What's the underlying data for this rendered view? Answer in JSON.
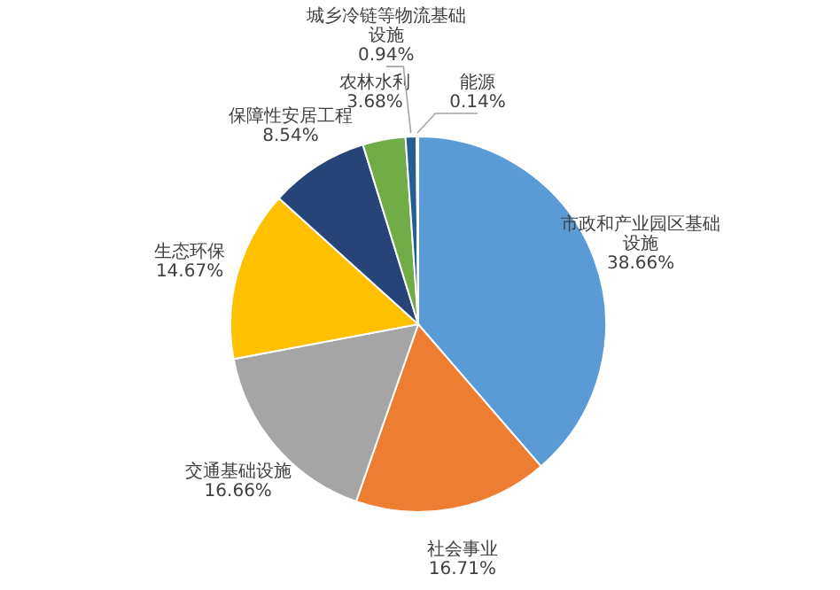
{
  "chart_data": {
    "type": "pie",
    "categories": [
      "市政和产业园区基础设施",
      "社会事业",
      "交通基础设施",
      "生态环保",
      "保障性安居工程",
      "农林水利",
      "城乡冷链等物流基础设施",
      "能源"
    ],
    "values": [
      38.66,
      16.71,
      16.66,
      14.67,
      8.54,
      3.68,
      0.94,
      0.14
    ],
    "value_labels": [
      "38.66%",
      "16.71%",
      "16.66%",
      "14.67%",
      "8.54%",
      "3.68%",
      "0.94%",
      "0.14%"
    ],
    "colors": [
      "#5b9bd5",
      "#ed7d31",
      "#a5a5a5",
      "#ffc000",
      "#264478",
      "#70ad47",
      "#255e91",
      "#4472c4"
    ]
  }
}
